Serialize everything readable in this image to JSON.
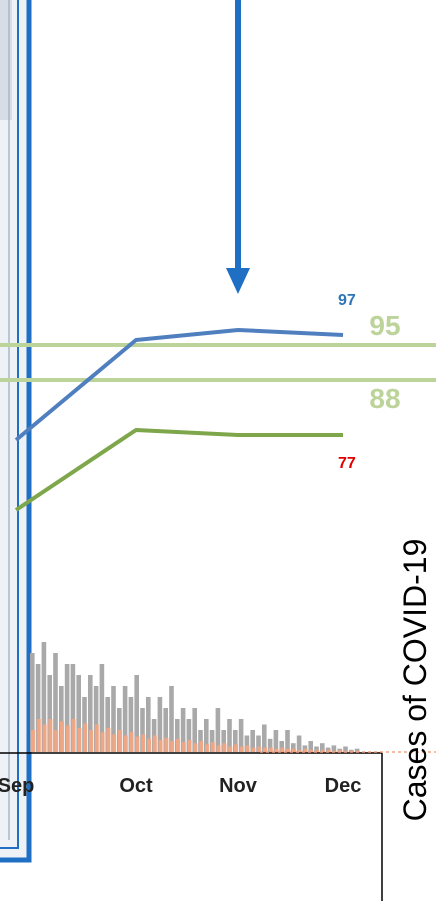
{
  "chart_data": {
    "type": "line",
    "categories": [
      "Sep",
      "Oct",
      "Nov",
      "Dec"
    ],
    "series": [
      {
        "name": "",
        "values": [
          76,
          96,
          98,
          97
        ],
        "color": "#4f7fbf",
        "end_label": "97",
        "end_label_color": "#2e75b6"
      },
      {
        "name": "",
        "values": [
          62,
          78,
          77,
          77
        ],
        "color": "#7ea64a",
        "end_label": "77",
        "end_label_color": "#e00000"
      }
    ],
    "reference_lines": [
      {
        "value": 95,
        "label": "95",
        "color": "#bcd49a"
      },
      {
        "value": 88,
        "label": "88",
        "color": "#bcd49a"
      }
    ],
    "bar_series": [
      {
        "name": "",
        "color": "#a9a9a9",
        "values": [
          9,
          8,
          10,
          7,
          9,
          6,
          8,
          8,
          7,
          5,
          7,
          6,
          8,
          5,
          6,
          4,
          6,
          5,
          7,
          4,
          5,
          3,
          5,
          4,
          6,
          3,
          4,
          3,
          4,
          2,
          3,
          2,
          4,
          2,
          3,
          2,
          3,
          1.5,
          2,
          1.5,
          2.5,
          1.2,
          2,
          1,
          2,
          0.8,
          1.5,
          0.6,
          1,
          0.5,
          0.8,
          0.4,
          0.6,
          0.3,
          0.5,
          0.2,
          0.3
        ]
      },
      {
        "name": "",
        "color": "#f4a582",
        "values": [
          2,
          3,
          2.5,
          3,
          2,
          2.8,
          2.4,
          3,
          2.2,
          2.6,
          2,
          2.5,
          1.8,
          2.2,
          1.6,
          2,
          1.5,
          1.8,
          1.4,
          1.6,
          1.2,
          1.5,
          1.1,
          1.3,
          1,
          1.2,
          0.9,
          1.1,
          0.8,
          1,
          0.7,
          0.9,
          0.6,
          0.8,
          0.5,
          0.7,
          0.5,
          0.6,
          0.4,
          0.5,
          0.4,
          0.4,
          0.3,
          0.4,
          0.3,
          0.3,
          0.2,
          0.3,
          0.2,
          0.2,
          0.2,
          0.2,
          0.1,
          0.2,
          0.1,
          0.1,
          0.1
        ]
      }
    ],
    "ylim": [
      50,
      110
    ],
    "ylabel": "Cases of COVID-19",
    "arrow_color": "#1f6fc5",
    "frame_color": "#1f6fc5"
  }
}
